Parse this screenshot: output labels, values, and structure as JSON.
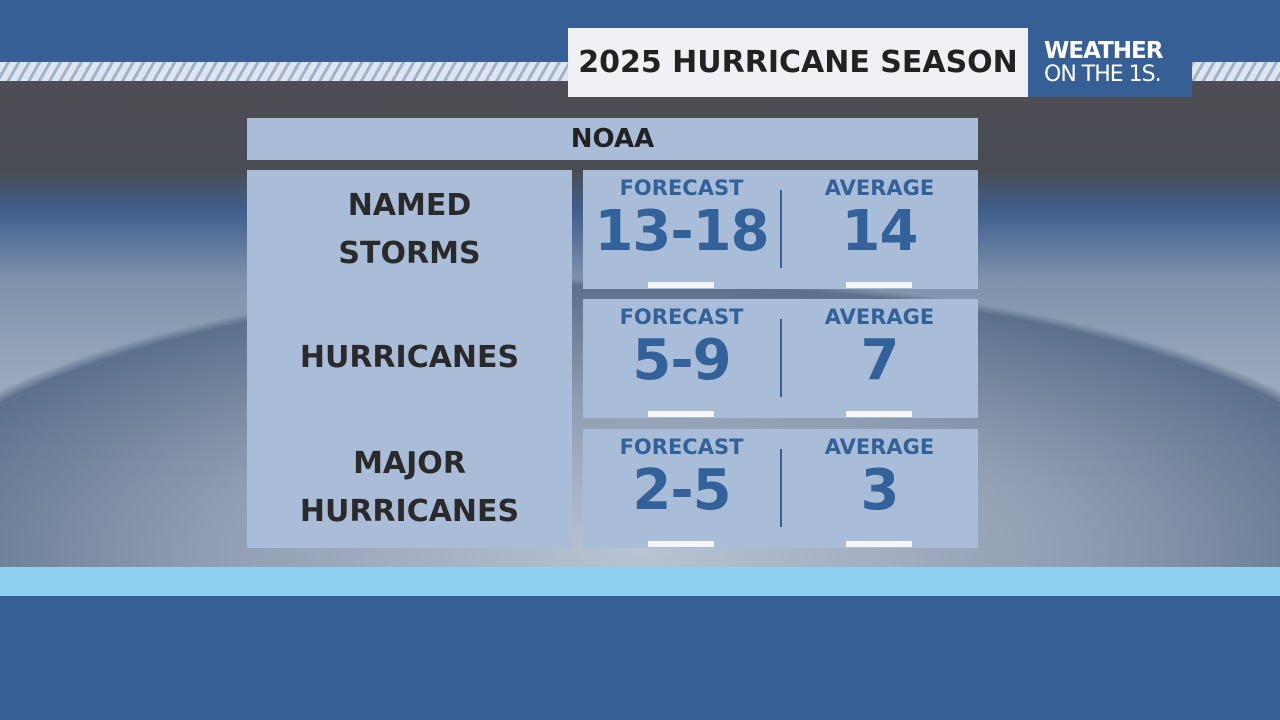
{
  "header": {
    "title": "2025 HURRICANE SEASON",
    "logo_line1": "WEATHER",
    "logo_line2": "ON THE 1S."
  },
  "table": {
    "source": "NOAA",
    "column_labels": {
      "forecast": "FORECAST",
      "average": "AVERAGE"
    },
    "rows": [
      {
        "label_line1": "NAMED",
        "label_line2": "STORMS",
        "forecast": "13-18",
        "average": "14"
      },
      {
        "label_line1": "HURRICANES",
        "label_line2": "",
        "forecast": "5-9",
        "average": "7"
      },
      {
        "label_line1": "MAJOR",
        "label_line2": "HURRICANES",
        "forecast": "2-5",
        "average": "3"
      }
    ]
  },
  "colors": {
    "brand_blue": "#365f95",
    "panel": "#a9bdd9",
    "value_text": "#33629b",
    "accent_cyan": "#8fd0f0"
  }
}
